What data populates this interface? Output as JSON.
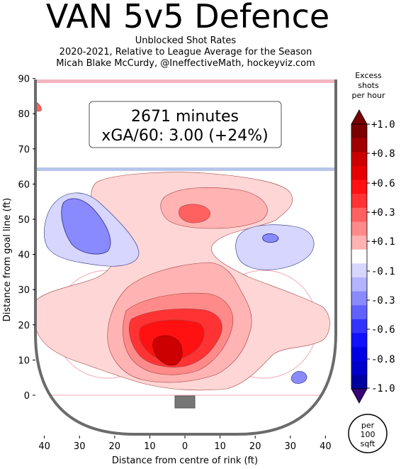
{
  "title": "VAN 5v5 Defence",
  "subtitle_lines": [
    "Unblocked Shot Rates",
    "2020-2021, Relative to League Average for the Season",
    "Micah Blake McCurdy, @IneffectiveMath, hockeyviz.com"
  ],
  "infobox": {
    "line1": "2671 minutes",
    "line2": "xGA/60: 3.00 (+24%)"
  },
  "colorbar": {
    "title_lines": [
      "Excess",
      "shots",
      "per hour"
    ],
    "ticks": [
      "+1.0",
      "+0.8",
      "+0.6",
      "+0.3",
      "+0.1",
      "-0.1",
      "-0.3",
      "-0.6",
      "-0.8",
      "-1.0"
    ],
    "colors": {
      "red": [
        "#7a0000",
        "#a00000",
        "#cc0000",
        "#e60000",
        "#ff1111",
        "#ff3333",
        "#ff6161",
        "#ff8a8a",
        "#ffb3b3",
        "#ffd6d6"
      ],
      "blue": [
        "#d6d6ff",
        "#b3b3ff",
        "#8a8aff",
        "#6161ff",
        "#3333ff",
        "#1111ff",
        "#0000e6",
        "#0000cc",
        "#0000a0",
        "#3a0078"
      ]
    }
  },
  "badge_lines": [
    "per",
    "100",
    "sqft"
  ],
  "chart_data": {
    "type": "heatmap",
    "xlabel": "Distance from centre of rink (ft)",
    "ylabel": "Distance from goal line (ft)",
    "xlim": [
      -42.5,
      42.5
    ],
    "ylim": [
      -10,
      90
    ],
    "xticks": [
      "40",
      "30",
      "20",
      "10",
      "0",
      "10",
      "20",
      "30",
      "40"
    ],
    "yticks": [
      "0",
      "10",
      "20",
      "30",
      "40",
      "50",
      "60",
      "70",
      "80",
      "90"
    ],
    "regions": [
      {
        "name": "high-danger-slot",
        "x": -2,
        "y": 14,
        "value": 0.85
      },
      {
        "name": "inner-slot",
        "x": -4,
        "y": 17,
        "value": 0.6
      },
      {
        "name": "slot",
        "x": -1,
        "y": 19,
        "value": 0.4
      },
      {
        "name": "point-area",
        "x": 3,
        "y": 51,
        "value": 0.3
      },
      {
        "name": "left-wing-low",
        "x": -27,
        "y": 47,
        "value": -0.3
      },
      {
        "name": "right-point",
        "x": 25,
        "y": 44,
        "value": -0.15
      },
      {
        "name": "right-corner",
        "x": 33,
        "y": 5,
        "value": -0.3
      },
      {
        "name": "left-edge-high",
        "x": -42,
        "y": 82,
        "value": 0.6
      }
    ]
  }
}
